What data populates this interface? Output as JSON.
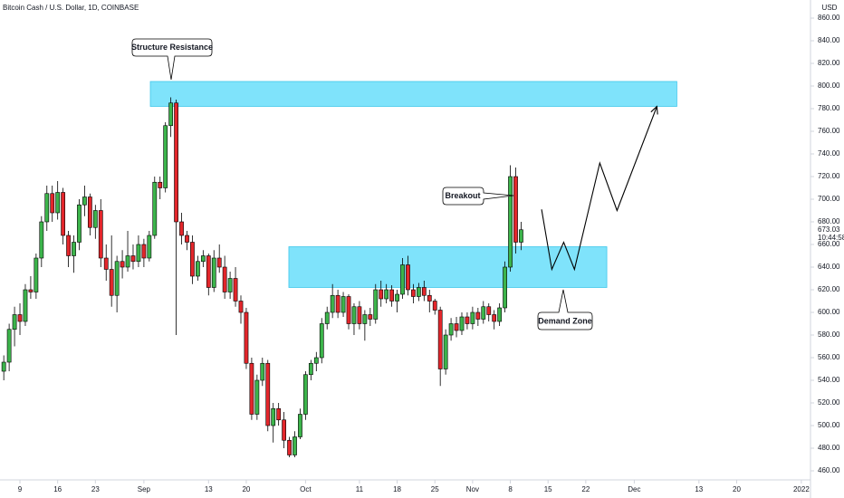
{
  "chart_data": {
    "type": "candlestick",
    "title": "Bitcoin Cash / U.S. Dollar, 1D, COINBASE",
    "currency": "USD",
    "up_color": "#3cb44b",
    "down_color": "#e3262b",
    "xlim": [
      -0.7,
      149.7
    ],
    "xticks": [
      {
        "value": 3,
        "label": "9"
      },
      {
        "value": 10,
        "label": "16"
      },
      {
        "value": 17,
        "label": "23"
      },
      {
        "value": 26,
        "label": "Sep"
      },
      {
        "value": 38,
        "label": "13"
      },
      {
        "value": 45,
        "label": "20"
      },
      {
        "value": 56,
        "label": "Oct"
      },
      {
        "value": 66,
        "label": "11"
      },
      {
        "value": 73,
        "label": "18"
      },
      {
        "value": 80,
        "label": "25"
      },
      {
        "value": 87,
        "label": "Nov"
      },
      {
        "value": 94,
        "label": "8"
      },
      {
        "value": 101,
        "label": "15"
      },
      {
        "value": 108,
        "label": "22"
      },
      {
        "value": 117,
        "label": "Dec"
      },
      {
        "value": 129,
        "label": "13"
      },
      {
        "value": 136,
        "label": "20"
      },
      {
        "value": 148,
        "label": "2022"
      }
    ],
    "ylim": [
      452,
      868
    ],
    "yticks": [
      {
        "value": 460,
        "label": "460.00"
      },
      {
        "value": 480,
        "label": "480.00"
      },
      {
        "value": 500,
        "label": "500.00"
      },
      {
        "value": 520,
        "label": "520.00"
      },
      {
        "value": 540,
        "label": "540.00"
      },
      {
        "value": 560,
        "label": "560.00"
      },
      {
        "value": 580,
        "label": "580.00"
      },
      {
        "value": 600,
        "label": "600.00"
      },
      {
        "value": 620,
        "label": "620.00"
      },
      {
        "value": 640,
        "label": "640.00"
      },
      {
        "value": 660,
        "label": "660.00"
      },
      {
        "value": 680,
        "label": "680.00"
      },
      {
        "value": 700,
        "label": "700.00"
      },
      {
        "value": 720,
        "label": "720.00"
      },
      {
        "value": 740,
        "label": "740.00"
      },
      {
        "value": 760,
        "label": "760.00"
      },
      {
        "value": 780,
        "label": "780.00"
      },
      {
        "value": 800,
        "label": "800.00"
      },
      {
        "value": 820,
        "label": "820.00"
      },
      {
        "value": 840,
        "label": "840.00"
      },
      {
        "value": 860,
        "label": "860.00"
      }
    ],
    "last_price": 673.03,
    "countdown": "10:44:58",
    "candles": [
      [
        548,
        562,
        540,
        556
      ],
      [
        556,
        590,
        548,
        585
      ],
      [
        585,
        605,
        570,
        598
      ],
      [
        598,
        608,
        580,
        592
      ],
      [
        592,
        625,
        588,
        620
      ],
      [
        620,
        632,
        612,
        618
      ],
      [
        618,
        652,
        612,
        648
      ],
      [
        648,
        685,
        640,
        680
      ],
      [
        680,
        712,
        672,
        705
      ],
      [
        705,
        712,
        680,
        688
      ],
      [
        688,
        716,
        682,
        706
      ],
      [
        706,
        710,
        660,
        668
      ],
      [
        668,
        672,
        640,
        650
      ],
      [
        650,
        668,
        635,
        662
      ],
      [
        662,
        700,
        655,
        695
      ],
      [
        695,
        712,
        685,
        702
      ],
      [
        702,
        705,
        668,
        675
      ],
      [
        675,
        695,
        665,
        690
      ],
      [
        690,
        700,
        640,
        648
      ],
      [
        648,
        660,
        628,
        638
      ],
      [
        638,
        668,
        605,
        615
      ],
      [
        615,
        650,
        600,
        645
      ],
      [
        645,
        655,
        630,
        640
      ],
      [
        640,
        672,
        636,
        650
      ],
      [
        650,
        660,
        638,
        645
      ],
      [
        645,
        668,
        640,
        660
      ],
      [
        660,
        665,
        640,
        648
      ],
      [
        648,
        672,
        645,
        668
      ],
      [
        668,
        720,
        665,
        715
      ],
      [
        715,
        720,
        700,
        710
      ],
      [
        710,
        768,
        706,
        765
      ],
      [
        765,
        790,
        755,
        785
      ],
      [
        785,
        788,
        580,
        680
      ],
      [
        680,
        688,
        660,
        668
      ],
      [
        668,
        672,
        655,
        662
      ],
      [
        662,
        668,
        625,
        632
      ],
      [
        632,
        650,
        628,
        645
      ],
      [
        645,
        655,
        640,
        650
      ],
      [
        650,
        652,
        615,
        622
      ],
      [
        622,
        655,
        618,
        648
      ],
      [
        648,
        660,
        635,
        640
      ],
      [
        640,
        650,
        612,
        618
      ],
      [
        618,
        636,
        612,
        630
      ],
      [
        630,
        640,
        605,
        610
      ],
      [
        610,
        615,
        590,
        600
      ],
      [
        600,
        604,
        550,
        555
      ],
      [
        555,
        560,
        505,
        510
      ],
      [
        510,
        545,
        505,
        540
      ],
      [
        540,
        560,
        535,
        555
      ],
      [
        555,
        558,
        495,
        500
      ],
      [
        500,
        520,
        485,
        515
      ],
      [
        515,
        520,
        500,
        505
      ],
      [
        505,
        512,
        480,
        487
      ],
      [
        487,
        490,
        472,
        474
      ],
      [
        474,
        495,
        472,
        490
      ],
      [
        490,
        515,
        488,
        510
      ],
      [
        510,
        548,
        505,
        545
      ],
      [
        545,
        558,
        540,
        555
      ],
      [
        555,
        565,
        548,
        560
      ],
      [
        560,
        595,
        555,
        590
      ],
      [
        590,
        605,
        585,
        600
      ],
      [
        600,
        625,
        595,
        615
      ],
      [
        615,
        620,
        595,
        600
      ],
      [
        600,
        618,
        596,
        614
      ],
      [
        614,
        616,
        585,
        590
      ],
      [
        590,
        608,
        580,
        605
      ],
      [
        605,
        610,
        585,
        590
      ],
      [
        590,
        602,
        575,
        598
      ],
      [
        598,
        604,
        588,
        594
      ],
      [
        594,
        625,
        590,
        620
      ],
      [
        620,
        628,
        605,
        612
      ],
      [
        612,
        625,
        608,
        620
      ],
      [
        620,
        624,
        605,
        610
      ],
      [
        610,
        620,
        600,
        616
      ],
      [
        616,
        648,
        612,
        642
      ],
      [
        642,
        650,
        615,
        620
      ],
      [
        620,
        625,
        608,
        614
      ],
      [
        614,
        626,
        610,
        622
      ],
      [
        622,
        628,
        610,
        615
      ],
      [
        615,
        620,
        600,
        610
      ],
      [
        610,
        612,
        598,
        602
      ],
      [
        602,
        605,
        535,
        550
      ],
      [
        550,
        585,
        545,
        580
      ],
      [
        580,
        595,
        575,
        590
      ],
      [
        590,
        596,
        578,
        584
      ],
      [
        584,
        600,
        580,
        596
      ],
      [
        596,
        600,
        585,
        590
      ],
      [
        590,
        605,
        585,
        600
      ],
      [
        600,
        604,
        588,
        594
      ],
      [
        594,
        610,
        590,
        605
      ],
      [
        605,
        608,
        592,
        598
      ],
      [
        598,
        602,
        585,
        592
      ],
      [
        592,
        608,
        588,
        604
      ],
      [
        604,
        645,
        600,
        640
      ],
      [
        640,
        730,
        636,
        720
      ],
      [
        720,
        728,
        652,
        662
      ],
      [
        662,
        680,
        655,
        673
      ]
    ],
    "zones": [
      {
        "x": [
          27.2,
          124.9
        ],
        "y": [
          782,
          804
        ]
      },
      {
        "x": [
          52.9,
          111.9
        ],
        "y": [
          622,
          658
        ]
      }
    ],
    "projection": {
      "x": [
        99.8,
        101.7,
        103.9,
        105.9,
        110.6,
        113.8,
        121.2
      ],
      "y": [
        691,
        638,
        662,
        638,
        732,
        690,
        782
      ]
    },
    "annotations": [
      "Structure Resistance",
      "Breakout",
      "Demand Zone"
    ]
  }
}
